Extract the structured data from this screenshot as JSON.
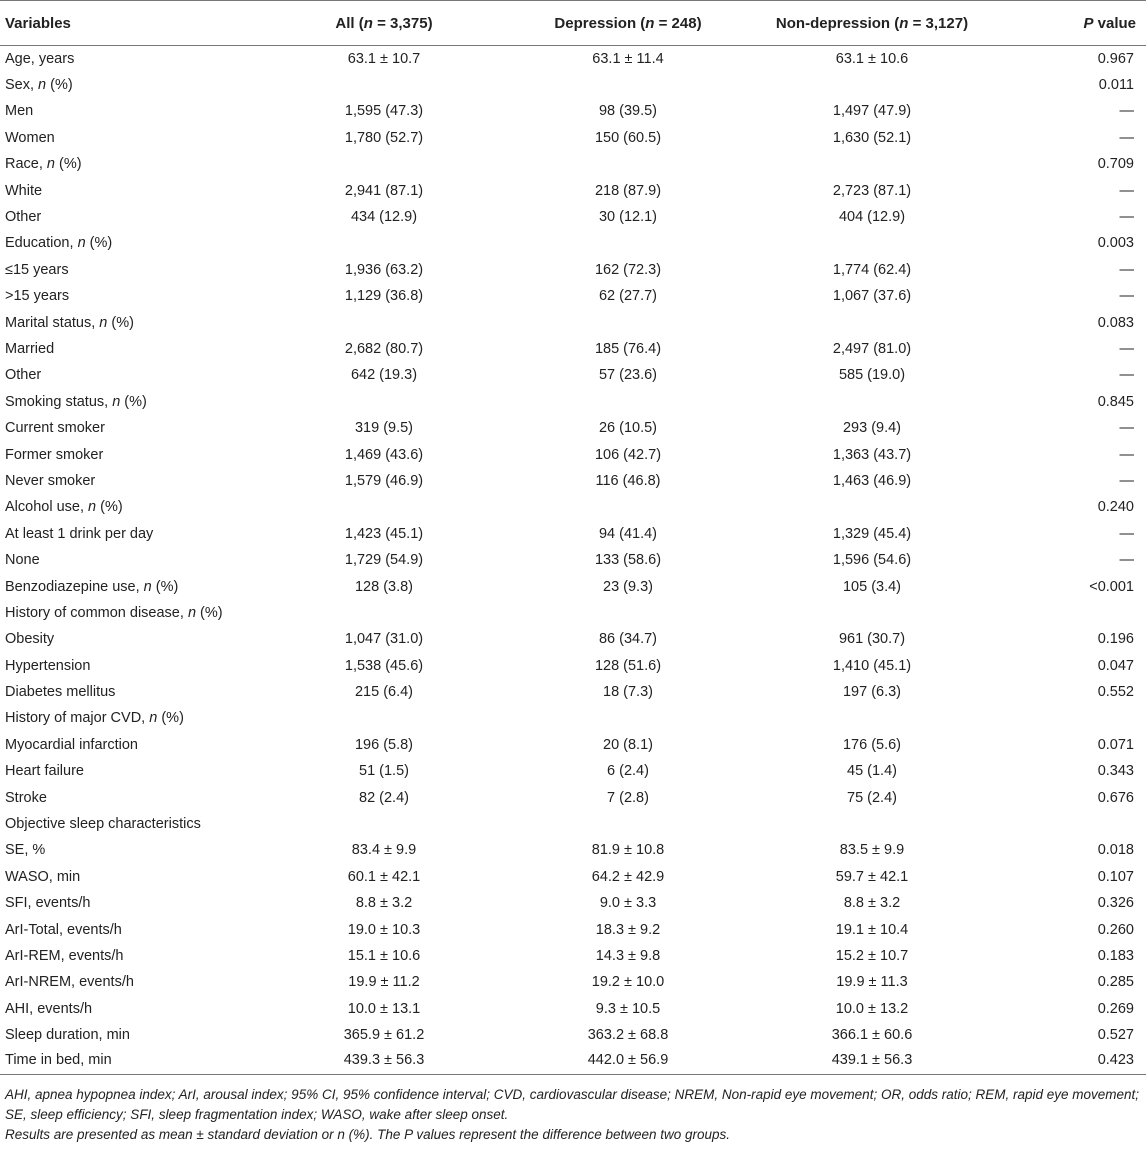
{
  "table": {
    "headers": {
      "variables": "Variables",
      "all": "All (n = 3,375)",
      "depression": "Depression (n = 248)",
      "non_depression": "Non-depression (n = 3,127)",
      "p_value": "P value"
    },
    "rows": [
      {
        "label": "Age, years",
        "all": "63.1 ± 10.7",
        "dep": "63.1 ± 11.4",
        "nondep": "63.1 ± 10.6",
        "p": "0.967"
      },
      {
        "label": "Sex, n (%)",
        "all": "",
        "dep": "",
        "nondep": "",
        "p": "0.011"
      },
      {
        "label": "Men",
        "all": "1,595 (47.3)",
        "dep": "98 (39.5)",
        "nondep": "1,497 (47.9)",
        "p": "—"
      },
      {
        "label": "Women",
        "all": "1,780 (52.7)",
        "dep": "150 (60.5)",
        "nondep": "1,630 (52.1)",
        "p": "—"
      },
      {
        "label": "Race, n (%)",
        "all": "",
        "dep": "",
        "nondep": "",
        "p": "0.709"
      },
      {
        "label": "White",
        "all": "2,941 (87.1)",
        "dep": "218 (87.9)",
        "nondep": "2,723 (87.1)",
        "p": "—"
      },
      {
        "label": "Other",
        "all": "434 (12.9)",
        "dep": "30 (12.1)",
        "nondep": "404 (12.9)",
        "p": "—"
      },
      {
        "label": "Education, n (%)",
        "all": "",
        "dep": "",
        "nondep": "",
        "p": "0.003"
      },
      {
        "label": "≤15 years",
        "all": "1,936 (63.2)",
        "dep": "162 (72.3)",
        "nondep": "1,774 (62.4)",
        "p": "—"
      },
      {
        "label": ">15 years",
        "all": "1,129 (36.8)",
        "dep": "62 (27.7)",
        "nondep": "1,067 (37.6)",
        "p": "—"
      },
      {
        "label": "Marital status, n (%)",
        "all": "",
        "dep": "",
        "nondep": "",
        "p": "0.083"
      },
      {
        "label": "Married",
        "all": "2,682 (80.7)",
        "dep": "185 (76.4)",
        "nondep": "2,497 (81.0)",
        "p": "—"
      },
      {
        "label": "Other",
        "all": "642 (19.3)",
        "dep": "57 (23.6)",
        "nondep": "585 (19.0)",
        "p": "—"
      },
      {
        "label": "Smoking status, n (%)",
        "all": "",
        "dep": "",
        "nondep": "",
        "p": "0.845"
      },
      {
        "label": "Current smoker",
        "all": "319 (9.5)",
        "dep": "26 (10.5)",
        "nondep": "293 (9.4)",
        "p": "—"
      },
      {
        "label": "Former smoker",
        "all": "1,469 (43.6)",
        "dep": "106 (42.7)",
        "nondep": "1,363 (43.7)",
        "p": "—"
      },
      {
        "label": "Never smoker",
        "all": "1,579 (46.9)",
        "dep": "116 (46.8)",
        "nondep": "1,463 (46.9)",
        "p": "—"
      },
      {
        "label": "Alcohol use, n (%)",
        "all": "",
        "dep": "",
        "nondep": "",
        "p": "0.240"
      },
      {
        "label": "At least 1 drink per day",
        "all": "1,423 (45.1)",
        "dep": "94 (41.4)",
        "nondep": "1,329 (45.4)",
        "p": "—"
      },
      {
        "label": "None",
        "all": "1,729 (54.9)",
        "dep": "133 (58.6)",
        "nondep": "1,596 (54.6)",
        "p": "—"
      },
      {
        "label": "Benzodiazepine use, n (%)",
        "all": "128 (3.8)",
        "dep": "23 (9.3)",
        "nondep": "105 (3.4)",
        "p": "<0.001"
      },
      {
        "label": "History of common disease, n (%)",
        "all": "",
        "dep": "",
        "nondep": "",
        "p": ""
      },
      {
        "label": "Obesity",
        "all": "1,047 (31.0)",
        "dep": "86 (34.7)",
        "nondep": "961 (30.7)",
        "p": "0.196"
      },
      {
        "label": "Hypertension",
        "all": "1,538 (45.6)",
        "dep": "128 (51.6)",
        "nondep": "1,410 (45.1)",
        "p": "0.047"
      },
      {
        "label": "Diabetes mellitus",
        "all": "215 (6.4)",
        "dep": "18 (7.3)",
        "nondep": "197 (6.3)",
        "p": "0.552"
      },
      {
        "label": "History of major CVD, n (%)",
        "all": "",
        "dep": "",
        "nondep": "",
        "p": ""
      },
      {
        "label": "Myocardial infarction",
        "all": "196 (5.8)",
        "dep": "20 (8.1)",
        "nondep": "176 (5.6)",
        "p": "0.071"
      },
      {
        "label": "Heart failure",
        "all": "51 (1.5)",
        "dep": "6 (2.4)",
        "nondep": "45 (1.4)",
        "p": "0.343"
      },
      {
        "label": "Stroke",
        "all": "82 (2.4)",
        "dep": "7 (2.8)",
        "nondep": "75 (2.4)",
        "p": "0.676"
      },
      {
        "label": "Objective sleep characteristics",
        "all": "",
        "dep": "",
        "nondep": "",
        "p": ""
      },
      {
        "label": "SE, %",
        "all": "83.4 ± 9.9",
        "dep": "81.9 ± 10.8",
        "nondep": "83.5 ± 9.9",
        "p": "0.018"
      },
      {
        "label": "WASO, min",
        "all": "60.1 ± 42.1",
        "dep": "64.2 ± 42.9",
        "nondep": "59.7 ± 42.1",
        "p": "0.107"
      },
      {
        "label": "SFI, events/h",
        "all": "8.8 ± 3.2",
        "dep": "9.0 ± 3.3",
        "nondep": "8.8 ± 3.2",
        "p": "0.326"
      },
      {
        "label": "ArI-Total, events/h",
        "all": "19.0 ± 10.3",
        "dep": "18.3 ± 9.2",
        "nondep": "19.1 ± 10.4",
        "p": "0.260"
      },
      {
        "label": "ArI-REM, events/h",
        "all": "15.1 ± 10.6",
        "dep": "14.3 ± 9.8",
        "nondep": "15.2 ± 10.7",
        "p": "0.183"
      },
      {
        "label": "ArI-NREM, events/h",
        "all": "19.9 ± 11.2",
        "dep": "19.2 ± 10.0",
        "nondep": "19.9 ± 11.3",
        "p": "0.285"
      },
      {
        "label": "AHI, events/h",
        "all": "10.0 ± 13.1",
        "dep": "9.3 ± 10.5",
        "nondep": "10.0 ± 13.2",
        "p": "0.269"
      },
      {
        "label": "Sleep duration, min",
        "all": "365.9 ± 61.2",
        "dep": "363.2 ± 68.8",
        "nondep": "366.1 ± 60.6",
        "p": "0.527"
      },
      {
        "label": "Time in bed, min",
        "all": "439.3 ± 56.3",
        "dep": "442.0 ± 56.9",
        "nondep": "439.1 ± 56.3",
        "p": "0.423"
      }
    ]
  },
  "footnotes": {
    "abbreviations": "AHI, apnea hypopnea index; ArI, arousal index; 95% CI, 95% confidence interval; CVD, cardiovascular disease; NREM, Non-rapid eye movement; OR, odds ratio; REM, rapid eye movement; SE, sleep efficiency; SFI, sleep fragmentation index; WASO, wake after sleep onset.",
    "results_note": "Results are presented as mean ± standard deviation or n (%). The P values represent the difference between two groups."
  }
}
